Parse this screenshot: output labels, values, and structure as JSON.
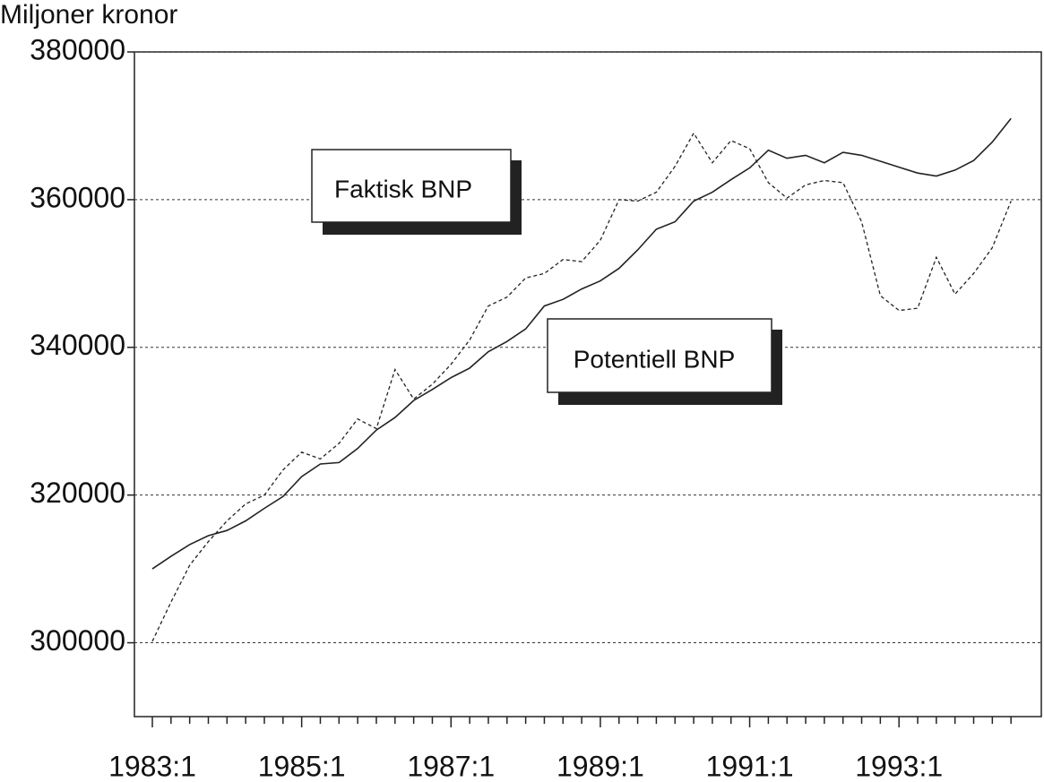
{
  "chart_data": {
    "type": "line",
    "y_label": "Miljoner kronor",
    "categories": [
      "1983:1",
      null,
      null,
      null,
      null,
      null,
      null,
      null,
      "1985:1",
      null,
      null,
      null,
      null,
      null,
      null,
      null,
      "1987:1",
      null,
      null,
      null,
      null,
      null,
      null,
      null,
      "1989:1",
      null,
      null,
      null,
      null,
      null,
      null,
      null,
      "1991:1",
      null,
      null,
      null,
      null,
      null,
      null,
      null,
      "1993:1",
      null,
      null,
      null,
      null,
      null,
      null
    ],
    "series": [
      {
        "name": "Faktisk BNP",
        "color": "#222222",
        "dashed": true,
        "values": [
          300200,
          305500,
          310500,
          313700,
          316500,
          318800,
          320000,
          323400,
          325800,
          324900,
          327000,
          330300,
          329000,
          337000,
          333000,
          335000,
          337700,
          341000,
          345600,
          346800,
          349400,
          350000,
          351900,
          351600,
          354500,
          360000,
          359800,
          361000,
          364500,
          369000,
          365000,
          368000,
          366900,
          362300,
          360200,
          362000,
          362600,
          362300,
          357000,
          347000,
          345000,
          345300,
          352200,
          347200,
          350000,
          353500,
          359800
        ]
      },
      {
        "name": "Potentiell BNP",
        "color": "#222222",
        "dashed": false,
        "values": [
          310000,
          311700,
          313300,
          314500,
          315200,
          316500,
          318200,
          319800,
          322500,
          324200,
          324400,
          326300,
          328800,
          330500,
          332800,
          334300,
          335900,
          337200,
          339400,
          340800,
          342500,
          345600,
          346500,
          347900,
          349000,
          350700,
          353200,
          356000,
          357000,
          359800,
          361000,
          362700,
          364300,
          366700,
          365600,
          366000,
          365000,
          366400,
          366000,
          365200,
          364400,
          363600,
          363200,
          364000,
          365300,
          367800,
          371000
        ]
      }
    ],
    "ylim": [
      290000,
      380000
    ],
    "yticks": [
      300000,
      320000,
      340000,
      360000,
      380000
    ],
    "grid": true
  }
}
